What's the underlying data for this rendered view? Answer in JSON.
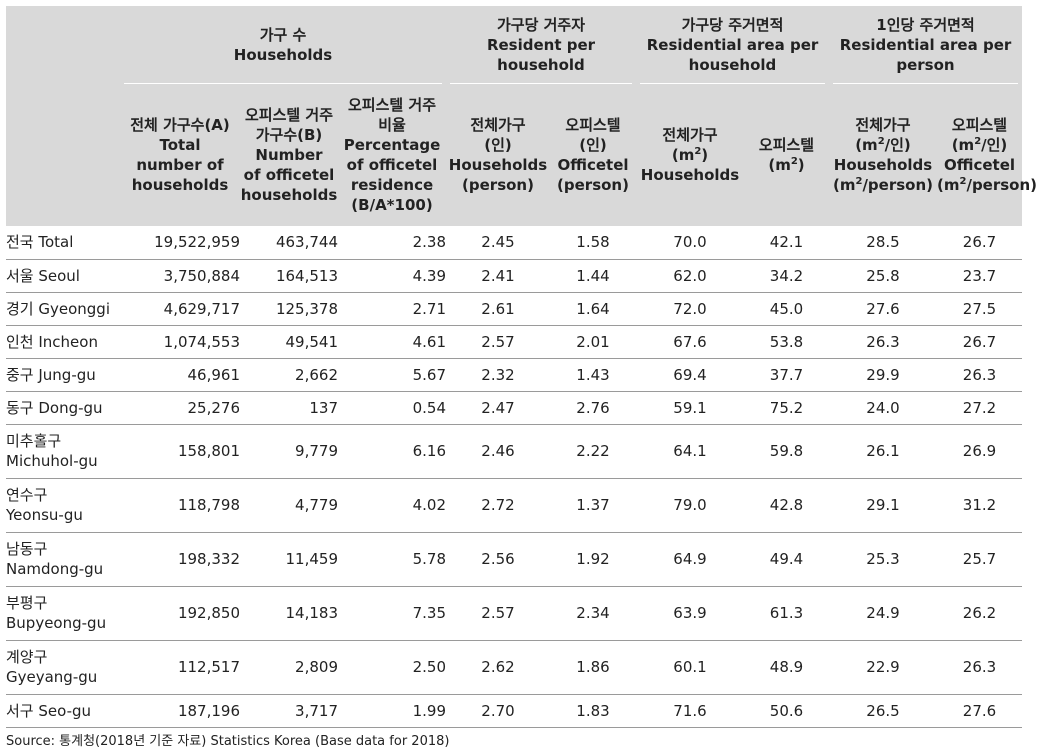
{
  "header": {
    "groups": [
      {
        "ko": "가구 수",
        "en": "Households"
      },
      {
        "ko": "가구당 거주자",
        "en": "Resident per household"
      },
      {
        "ko": "가구당 주거면적",
        "en": "Residential area per household"
      },
      {
        "ko": "1인당 주거면적",
        "en": "Residential area per person"
      }
    ],
    "columns": [
      [
        "전체 가구수(A)",
        "Total",
        "number of",
        "households"
      ],
      [
        "오피스텔 거주",
        "가구수(B)",
        "Number",
        "of officetel",
        "households"
      ],
      [
        "오피스텔 거주",
        "비율",
        "Percentage",
        "of officetel",
        "residence",
        "(B/A*100)"
      ],
      [
        "전체가구",
        "(인)",
        "Households",
        "(person)"
      ],
      [
        "오피스텔",
        "(인)",
        "Officetel",
        "(person)"
      ],
      [
        "전체가구",
        "(m2)",
        "Households"
      ],
      [
        "오피스텔",
        "(m2)"
      ],
      [
        "전체가구",
        "(m2/인)",
        "Households",
        "(m2/person)"
      ],
      [
        "오피스텔",
        "(m2/인)",
        "Officetel",
        "(m2/person)"
      ]
    ]
  },
  "rows": [
    {
      "region": [
        "전국 Total"
      ],
      "values": [
        "19,522,959",
        "463,744",
        "2.38",
        "2.45",
        "1.58",
        "70.0",
        "42.1",
        "28.5",
        "26.7"
      ]
    },
    {
      "region": [
        "서울 Seoul"
      ],
      "values": [
        "3,750,884",
        "164,513",
        "4.39",
        "2.41",
        "1.44",
        "62.0",
        "34.2",
        "25.8",
        "23.7"
      ]
    },
    {
      "region": [
        "경기 Gyeonggi"
      ],
      "values": [
        "4,629,717",
        "125,378",
        "2.71",
        "2.61",
        "1.64",
        "72.0",
        "45.0",
        "27.6",
        "27.5"
      ]
    },
    {
      "region": [
        "인천 Incheon"
      ],
      "values": [
        "1,074,553",
        "49,541",
        "4.61",
        "2.57",
        "2.01",
        "67.6",
        "53.8",
        "26.3",
        "26.7"
      ]
    },
    {
      "region": [
        "중구 Jung-gu"
      ],
      "values": [
        "46,961",
        "2,662",
        "5.67",
        "2.32",
        "1.43",
        "69.4",
        "37.7",
        "29.9",
        "26.3"
      ]
    },
    {
      "region": [
        "동구 Dong-gu"
      ],
      "values": [
        "25,276",
        "137",
        "0.54",
        "2.47",
        "2.76",
        "59.1",
        "75.2",
        "24.0",
        "27.2"
      ]
    },
    {
      "region": [
        "미추홀구",
        "Michuhol-gu"
      ],
      "values": [
        "158,801",
        "9,779",
        "6.16",
        "2.46",
        "2.22",
        "64.1",
        "59.8",
        "26.1",
        "26.9"
      ]
    },
    {
      "region": [
        "연수구",
        "Yeonsu-gu"
      ],
      "values": [
        "118,798",
        "4,779",
        "4.02",
        "2.72",
        "1.37",
        "79.0",
        "42.8",
        "29.1",
        "31.2"
      ]
    },
    {
      "region": [
        "남동구",
        "Namdong-gu"
      ],
      "values": [
        "198,332",
        "11,459",
        "5.78",
        "2.56",
        "1.92",
        "64.9",
        "49.4",
        "25.3",
        "25.7"
      ]
    },
    {
      "region": [
        "부평구",
        "Bupyeong-gu"
      ],
      "values": [
        "192,850",
        "14,183",
        "7.35",
        "2.57",
        "2.34",
        "63.9",
        "61.3",
        "24.9",
        "26.2"
      ]
    },
    {
      "region": [
        "계양구",
        "Gyeyang-gu"
      ],
      "values": [
        "112,517",
        "2,809",
        "2.50",
        "2.62",
        "1.86",
        "60.1",
        "48.9",
        "22.9",
        "26.3"
      ]
    },
    {
      "region": [
        "서구 Seo-gu"
      ],
      "values": [
        "187,196",
        "3,717",
        "1.99",
        "2.70",
        "1.83",
        "71.6",
        "50.6",
        "26.5",
        "27.6"
      ]
    }
  ],
  "source": "Source: 통계청(2018년 기준 자료) Statistics Korea (Base data for 2018)"
}
